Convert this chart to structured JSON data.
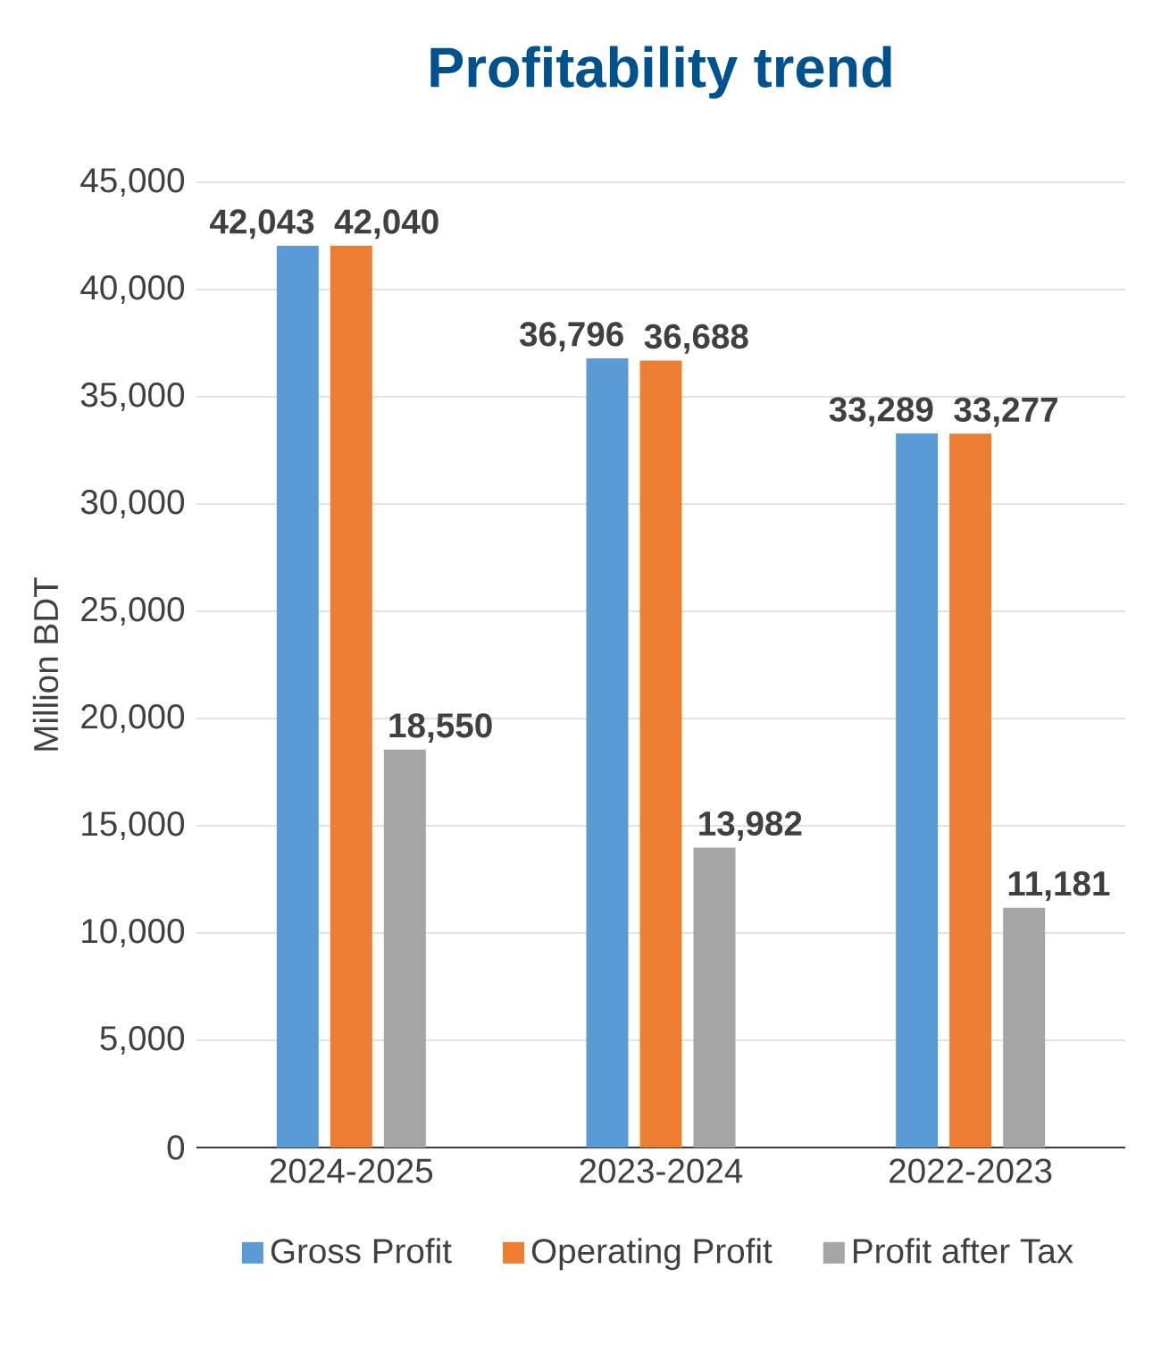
{
  "chart_data": {
    "type": "bar",
    "title": "Profitability trend",
    "ylabel": "Million BDT",
    "categories": [
      "2024-2025",
      "2023-2024",
      "2022-2023"
    ],
    "series": [
      {
        "name": "Gross Profit",
        "color": "#5b9bd5",
        "values": [
          42043,
          36796,
          33289
        ],
        "value_labels": [
          "42,043",
          "36,796",
          "33,289"
        ]
      },
      {
        "name": "Operating Profit",
        "color": "#ed7d31",
        "values": [
          42040,
          36688,
          33277
        ],
        "value_labels": [
          "42,040",
          "36,688",
          "33,277"
        ]
      },
      {
        "name": "Profit after Tax",
        "color": "#a5a5a5",
        "values": [
          18550,
          13982,
          11181
        ],
        "value_labels": [
          "18,550",
          "13,982",
          "11,181"
        ]
      }
    ],
    "ylim": [
      0,
      45000
    ],
    "yticks": [
      {
        "value": 0,
        "label": "0"
      },
      {
        "value": 5000,
        "label": "5,000"
      },
      {
        "value": 10000,
        "label": "10,000"
      },
      {
        "value": 15000,
        "label": "15,000"
      },
      {
        "value": 20000,
        "label": "20,000"
      },
      {
        "value": 25000,
        "label": "25,000"
      },
      {
        "value": 30000,
        "label": "30,000"
      },
      {
        "value": 35000,
        "label": "35,000"
      },
      {
        "value": 40000,
        "label": "40,000"
      },
      {
        "value": 45000,
        "label": "45,000"
      }
    ],
    "grid": "y",
    "legend": "bottom"
  }
}
